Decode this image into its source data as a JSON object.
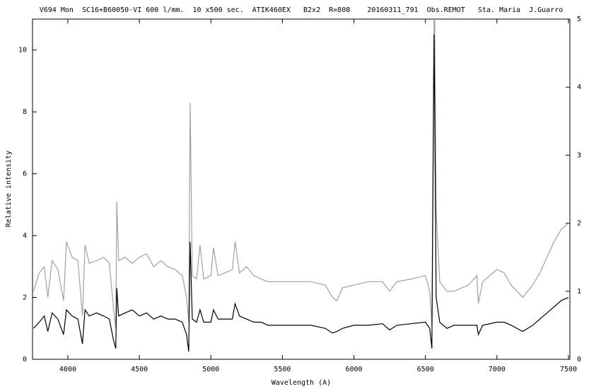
{
  "chart_data": {
    "type": "line",
    "title": "V694 Mon  SC16+B60050-VI 600 l/mm.  10 x500 sec.  ATIK460EX   B2x2  R=808    20160311_791  Obs.REMOT   Sta. Maria  J.Guarro",
    "x_label": "Wavelength (A)",
    "y_label": "Relative intensity",
    "x": [
      3760,
      3800,
      3835,
      3860,
      3890,
      3930,
      3970,
      3990,
      4030,
      4070,
      4102,
      4120,
      4150,
      4200,
      4250,
      4290,
      4320,
      4335,
      4342,
      4355,
      4400,
      4450,
      4500,
      4550,
      4600,
      4650,
      4700,
      4750,
      4800,
      4830,
      4845,
      4855,
      4870,
      4900,
      4924,
      4950,
      5000,
      5018,
      5050,
      5100,
      5150,
      5169,
      5200,
      5250,
      5300,
      5350,
      5400,
      5500,
      5600,
      5700,
      5800,
      5850,
      5880,
      5920,
      6000,
      6100,
      6200,
      6250,
      6300,
      6400,
      6500,
      6530,
      6545,
      6560,
      6565,
      6575,
      6600,
      6650,
      6700,
      6800,
      6860,
      6870,
      6900,
      7000,
      7050,
      7100,
      7180,
      7250,
      7300,
      7350,
      7400,
      7450,
      7500
    ],
    "series": [
      {
        "color": "#000000",
        "axis": "y",
        "values": [
          1.0,
          1.2,
          1.4,
          0.9,
          1.5,
          1.3,
          0.8,
          1.6,
          1.4,
          1.3,
          0.5,
          1.6,
          1.4,
          1.5,
          1.4,
          1.3,
          0.6,
          0.35,
          2.3,
          1.4,
          1.5,
          1.6,
          1.4,
          1.5,
          1.3,
          1.4,
          1.3,
          1.3,
          1.2,
          0.8,
          0.25,
          3.8,
          1.3,
          1.2,
          1.6,
          1.2,
          1.2,
          1.6,
          1.3,
          1.3,
          1.3,
          1.8,
          1.4,
          1.3,
          1.2,
          1.2,
          1.1,
          1.1,
          1.1,
          1.1,
          1.0,
          0.85,
          0.9,
          1.0,
          1.1,
          1.1,
          1.15,
          0.95,
          1.1,
          1.15,
          1.2,
          1.0,
          0.35,
          10.5,
          8.0,
          2.0,
          1.2,
          1.0,
          1.1,
          1.1,
          1.1,
          0.8,
          1.1,
          1.2,
          1.2,
          1.1,
          0.9,
          1.1,
          1.3,
          1.5,
          1.7,
          1.9,
          2.0
        ]
      },
      {
        "color": "#a0a0a0",
        "axis": "y2",
        "values": [
          1.0,
          1.27,
          1.36,
          0.91,
          1.45,
          1.32,
          0.86,
          1.73,
          1.5,
          1.45,
          0.64,
          1.68,
          1.41,
          1.45,
          1.5,
          1.41,
          0.73,
          0.45,
          2.32,
          1.45,
          1.5,
          1.41,
          1.5,
          1.55,
          1.36,
          1.45,
          1.36,
          1.32,
          1.23,
          0.91,
          0.55,
          3.77,
          1.23,
          1.18,
          1.68,
          1.18,
          1.23,
          1.64,
          1.23,
          1.27,
          1.32,
          1.73,
          1.27,
          1.36,
          1.23,
          1.18,
          1.14,
          1.14,
          1.14,
          1.14,
          1.09,
          0.91,
          0.86,
          1.05,
          1.09,
          1.14,
          1.14,
          1.0,
          1.14,
          1.18,
          1.23,
          1.0,
          0.5,
          5.0,
          5.0,
          2.18,
          1.14,
          1.0,
          1.0,
          1.09,
          1.23,
          0.82,
          1.14,
          1.32,
          1.27,
          1.09,
          0.91,
          1.09,
          1.27,
          1.5,
          1.73,
          1.91,
          2.0
        ]
      }
    ],
    "xlim": [
      3753,
      7510
    ],
    "xticks": [
      4000,
      4500,
      5000,
      5500,
      6000,
      6500,
      7000,
      7500
    ],
    "ylim": [
      0,
      11
    ],
    "yticks": [
      0,
      2,
      4,
      6,
      8,
      10
    ],
    "y2lim": [
      0,
      5
    ],
    "y2ticks": [
      0,
      1,
      2,
      3,
      4,
      5
    ],
    "grid": false
  }
}
